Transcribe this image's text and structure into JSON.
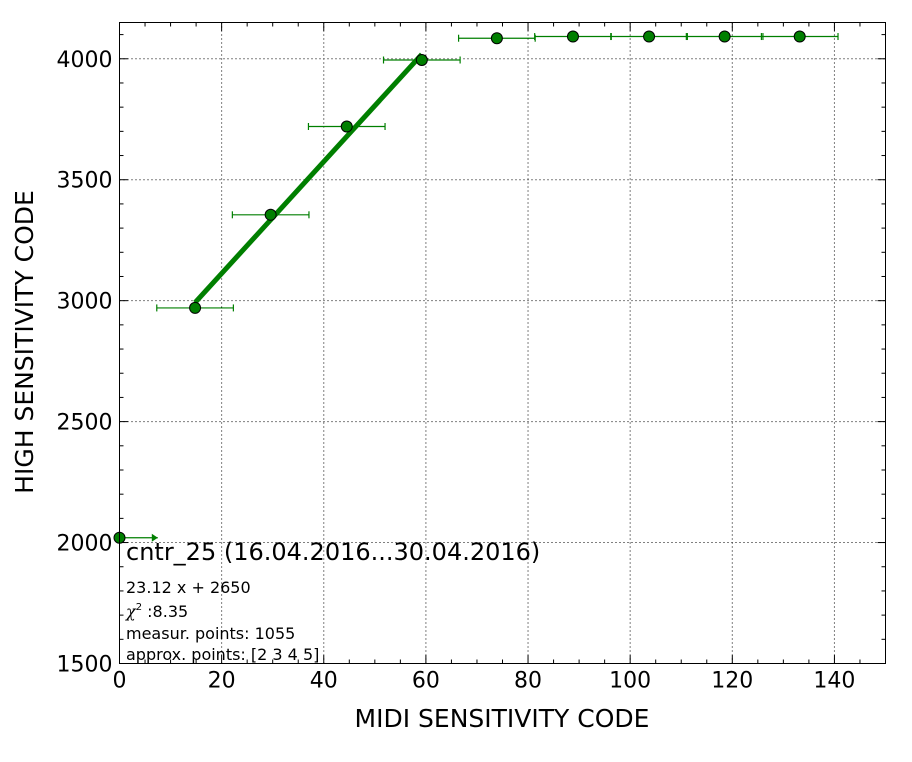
{
  "chart_data": {
    "type": "scatter",
    "xlabel": "MIDI SENSITIVITY CODE",
    "ylabel": "HIGH SENSITIVITY CODE",
    "xlim": [
      0,
      150
    ],
    "ylim": [
      1500,
      4150
    ],
    "xticks": [
      0,
      20,
      40,
      60,
      80,
      100,
      120,
      140
    ],
    "yticks": [
      1500,
      2000,
      2500,
      3000,
      3500,
      4000
    ],
    "xtick_labels": [
      "0",
      "20",
      "40",
      "60",
      "80",
      "100",
      "120",
      "140"
    ],
    "ytick_labels": [
      "1500",
      "2000",
      "2500",
      "3000",
      "3500",
      "4000"
    ],
    "grid": true,
    "colors": {
      "points": "#007f00",
      "fit_line": "#007f00",
      "errorbars": "#007f00"
    },
    "points": [
      {
        "x": 0,
        "y": 2020,
        "xerr": 7.5
      },
      {
        "x": 14.8,
        "y": 2970,
        "xerr": 7.5
      },
      {
        "x": 29.6,
        "y": 3355,
        "xerr": 7.5
      },
      {
        "x": 44.5,
        "y": 3720,
        "xerr": 7.5
      },
      {
        "x": 59.2,
        "y": 3995,
        "xerr": 7.5
      },
      {
        "x": 73.9,
        "y": 4085,
        "xerr": 7.5
      },
      {
        "x": 88.8,
        "y": 4092,
        "xerr": 7.5
      },
      {
        "x": 103.7,
        "y": 4092,
        "xerr": 7.5
      },
      {
        "x": 118.5,
        "y": 4092,
        "xerr": 7.5
      },
      {
        "x": 133.2,
        "y": 4092,
        "xerr": 7.5
      }
    ],
    "fit": {
      "slope": 23.12,
      "intercept": 2650,
      "x_range": [
        14.8,
        59.2
      ]
    },
    "annotations": {
      "title": "cntr_25 (16.04.2016...30.04.2016)",
      "equation": "23.12 x + 2650",
      "chi_symbol": "χ",
      "chi_exp": "2",
      "chi_value": " :8.35",
      "measur_points": "measur. points: 1055",
      "approx_points": "approx. points: [2 3 4 5]"
    }
  }
}
